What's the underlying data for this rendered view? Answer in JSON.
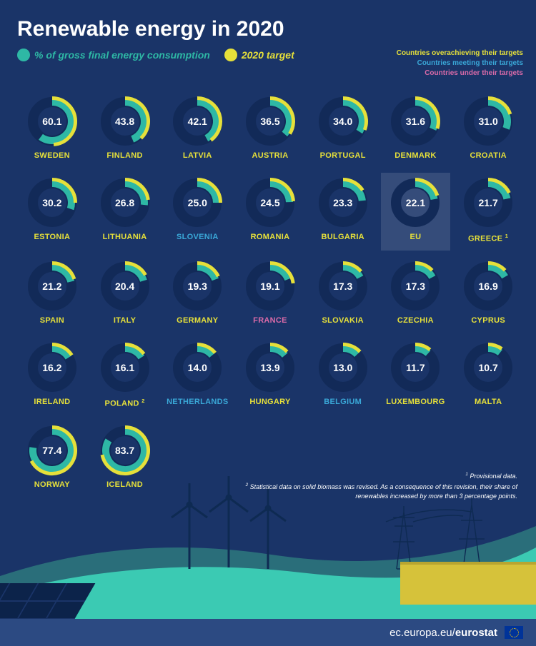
{
  "title": "Renewable energy in 2020",
  "legend": {
    "consumption": {
      "label": "% of gross final energy consumption",
      "color": "#2eb8a5"
    },
    "target": {
      "label": "2020 target",
      "color": "#e6e03a"
    }
  },
  "status_legend": {
    "over": {
      "label": "Countries overachieving their targets",
      "color": "#e6e03a"
    },
    "meeting": {
      "label": "Countries meeting their targets",
      "color": "#3aa8d8"
    },
    "under": {
      "label": "Countries under their targets",
      "color": "#d96aa8"
    }
  },
  "chart": {
    "type": "donut-grid",
    "columns": 7,
    "donut": {
      "outer_radius": 34,
      "inner_radius": 20,
      "ring_bg_color": "#122a58",
      "target_stroke_width": 5,
      "consumption_stroke_width": 10,
      "value_fontsize": 14,
      "label_fontsize": 11,
      "scale_max_pct": 100
    },
    "background_color": "#1a3468",
    "highlight_bg": "rgba(255,255,255,0.12)"
  },
  "countries": [
    {
      "name": "SWEDEN",
      "value": 60.1,
      "target": 49,
      "status": "over"
    },
    {
      "name": "FINLAND",
      "value": 43.8,
      "target": 38,
      "status": "over"
    },
    {
      "name": "LATVIA",
      "value": 42.1,
      "target": 40,
      "status": "over"
    },
    {
      "name": "AUSTRIA",
      "value": 36.5,
      "target": 34,
      "status": "over"
    },
    {
      "name": "PORTUGAL",
      "value": 34.0,
      "target": 31,
      "status": "over"
    },
    {
      "name": "DENMARK",
      "value": 31.6,
      "target": 30,
      "status": "over"
    },
    {
      "name": "CROATIA",
      "value": 31.0,
      "target": 20,
      "status": "over"
    },
    {
      "name": "ESTONIA",
      "value": 30.2,
      "target": 25,
      "status": "over"
    },
    {
      "name": "LITHUANIA",
      "value": 26.8,
      "target": 23,
      "status": "over"
    },
    {
      "name": "SLOVENIA",
      "value": 25.0,
      "target": 25,
      "status": "meeting"
    },
    {
      "name": "ROMANIA",
      "value": 24.5,
      "target": 24,
      "status": "over"
    },
    {
      "name": "BULGARIA",
      "value": 23.3,
      "target": 16,
      "status": "over"
    },
    {
      "name": "EU",
      "value": 22.1,
      "target": 20,
      "status": "over",
      "highlight": true
    },
    {
      "name": "GREECE",
      "value": 21.7,
      "target": 18,
      "status": "over",
      "sup": "1"
    },
    {
      "name": "SPAIN",
      "value": 21.2,
      "target": 20,
      "status": "over"
    },
    {
      "name": "ITALY",
      "value": 20.4,
      "target": 17,
      "status": "over"
    },
    {
      "name": "GERMANY",
      "value": 19.3,
      "target": 18,
      "status": "over"
    },
    {
      "name": "FRANCE",
      "value": 19.1,
      "target": 23,
      "status": "under"
    },
    {
      "name": "SLOVAKIA",
      "value": 17.3,
      "target": 14,
      "status": "over"
    },
    {
      "name": "CZECHIA",
      "value": 17.3,
      "target": 13,
      "status": "over"
    },
    {
      "name": "CYPRUS",
      "value": 16.9,
      "target": 13,
      "status": "over"
    },
    {
      "name": "IRELAND",
      "value": 16.2,
      "target": 16,
      "status": "over"
    },
    {
      "name": "POLAND",
      "value": 16.1,
      "target": 15,
      "status": "over",
      "sup": "2"
    },
    {
      "name": "NETHERLANDS",
      "value": 14.0,
      "target": 14,
      "status": "meeting"
    },
    {
      "name": "HUNGARY",
      "value": 13.9,
      "target": 13,
      "status": "over"
    },
    {
      "name": "BELGIUM",
      "value": 13.0,
      "target": 13,
      "status": "meeting"
    },
    {
      "name": "LUXEMBOURG",
      "value": 11.7,
      "target": 11,
      "status": "over"
    },
    {
      "name": "MALTA",
      "value": 10.7,
      "target": 10,
      "status": "over"
    },
    {
      "name": "NORWAY",
      "value": 77.4,
      "target": 67.5,
      "status": "over"
    },
    {
      "name": "ICELAND",
      "value": 83.7,
      "target": 72,
      "status": "over"
    }
  ],
  "footnotes": {
    "f1": "Provisional data.",
    "f2": "Statistical data on solid biomass was revised. As a consequence of this revision, their share of renewables increased by more than 3 percentage points."
  },
  "footer": {
    "text_plain": "ec.europa.eu/",
    "text_bold": "eurostat"
  },
  "landscape_colors": {
    "hill_back": "#153863",
    "hill_mid": "#2a6e7a",
    "hill_front": "#3bcab3",
    "turbine": "#0e2a52",
    "pylon": "#0e2a52",
    "panel_dark": "#0c234a",
    "building": "#d6c23a"
  }
}
